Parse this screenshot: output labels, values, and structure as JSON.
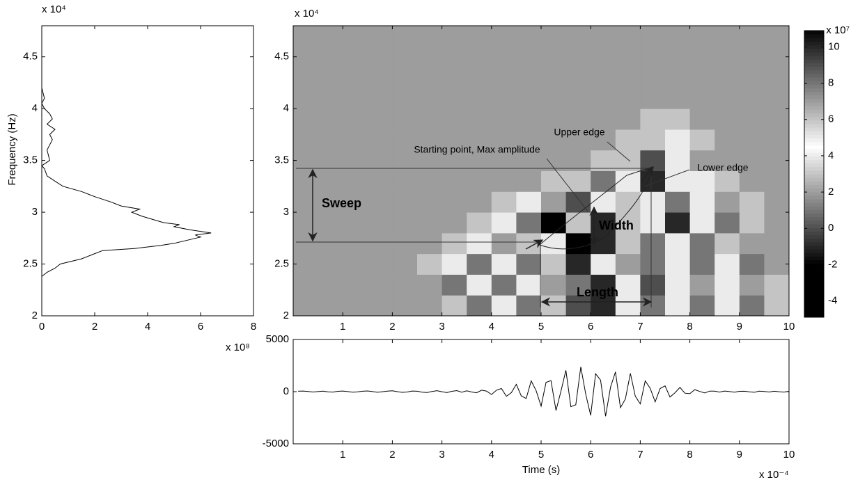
{
  "chart_data": [
    {
      "type": "line",
      "orientation": "horizontal",
      "ylabel": "Frequency (Hz)",
      "x_multiplier": "x 10⁸",
      "y_multiplier": "x 10⁴",
      "xlim": [
        0,
        8
      ],
      "xticks": [
        0,
        2,
        4,
        6,
        8
      ],
      "ylim": [
        2,
        4.8
      ],
      "yticks": [
        2,
        2.5,
        3,
        3.5,
        4,
        4.5
      ],
      "color": "#000000",
      "y": [
        2.38,
        2.42,
        2.46,
        2.5,
        2.55,
        2.6,
        2.63,
        2.65,
        2.68,
        2.7,
        2.73,
        2.76,
        2.78,
        2.8,
        2.83,
        2.86,
        2.88,
        2.9,
        2.93,
        2.96,
        3.0,
        3.03,
        3.06,
        3.1,
        3.15,
        3.2,
        3.25,
        3.3,
        3.35,
        3.42,
        3.45,
        3.5,
        3.6,
        3.7,
        3.75,
        3.8,
        3.85,
        3.9,
        3.95,
        4.0,
        4.05,
        4.1,
        4.2
      ],
      "values": [
        0,
        0.2,
        0.5,
        0.7,
        1.5,
        2.0,
        2.3,
        3.5,
        4.5,
        5.0,
        5.5,
        6.0,
        5.8,
        6.4,
        5.6,
        5.0,
        5.2,
        4.6,
        4.2,
        3.8,
        3.4,
        3.7,
        3.0,
        2.6,
        2.0,
        1.5,
        0.8,
        0.5,
        0.2,
        0.1,
        0,
        0.3,
        0.2,
        0.4,
        0.3,
        0.5,
        0.2,
        0.4,
        0.3,
        0.1,
        0,
        0.1,
        0
      ]
    },
    {
      "type": "heatmap",
      "y_multiplier": "x 10⁴",
      "xlim": [
        0,
        10
      ],
      "xticks": [
        1,
        2,
        3,
        4,
        5,
        6,
        7,
        8,
        9,
        10
      ],
      "ylim": [
        2,
        4.8
      ],
      "yticks": [
        2,
        2.5,
        3,
        3.5,
        4,
        4.5
      ],
      "z": [
        [
          2,
          2,
          2,
          2,
          2,
          2,
          3,
          1,
          4,
          1,
          6,
          0,
          10,
          4,
          1,
          5,
          1,
          4,
          1,
          3
        ],
        [
          2,
          2,
          2,
          2,
          2,
          2,
          1,
          4,
          1,
          5,
          7,
          1,
          10,
          5,
          0,
          5,
          2,
          4,
          2,
          3
        ],
        [
          2,
          2,
          2,
          2,
          2,
          3,
          4,
          1,
          5,
          1,
          6,
          -1,
          5,
          7,
          1,
          5,
          1,
          4,
          1,
          2
        ],
        [
          2,
          2,
          2,
          2,
          2,
          2,
          3,
          5,
          2,
          6,
          5,
          -2,
          -1,
          6,
          1,
          4,
          1,
          3,
          2,
          2
        ],
        [
          2,
          2,
          2,
          2,
          2,
          2,
          2,
          3,
          4,
          1,
          -2,
          6,
          10,
          6,
          4,
          -1,
          5,
          1,
          3,
          2
        ],
        [
          2,
          2,
          2,
          2,
          2,
          2,
          2,
          2,
          3,
          4,
          2,
          0,
          5,
          6,
          5,
          1,
          4,
          2,
          3,
          2
        ],
        [
          2,
          2,
          2,
          2,
          2,
          2,
          2,
          2,
          2,
          2,
          3,
          3,
          1,
          5,
          10,
          5,
          4,
          3,
          2,
          2
        ],
        [
          2,
          2,
          2,
          2,
          2,
          2,
          2,
          2,
          2,
          2,
          2,
          2,
          3,
          3,
          9,
          5,
          2,
          2,
          2,
          2
        ],
        [
          2,
          2,
          2,
          2,
          2,
          2,
          2,
          2,
          2,
          2,
          2,
          2,
          2,
          3,
          3,
          5,
          3,
          2,
          2,
          2
        ],
        [
          2,
          2,
          2,
          2,
          2,
          2,
          2,
          2,
          2,
          2,
          2,
          2,
          2,
          2,
          3,
          3,
          2,
          2,
          2,
          2
        ],
        [
          2,
          2,
          2,
          2,
          2,
          2,
          2,
          2,
          2,
          2,
          2,
          2,
          2,
          2,
          2,
          2,
          2,
          2,
          2,
          2
        ],
        [
          2,
          2,
          2,
          2,
          2,
          2,
          2,
          2,
          2,
          2,
          2,
          2,
          2,
          2,
          2,
          2,
          2,
          2,
          2,
          2
        ],
        [
          2,
          2,
          2,
          2,
          2,
          2,
          2,
          2,
          2,
          2,
          2,
          2,
          2,
          2,
          2,
          2,
          2,
          2,
          2,
          2
        ],
        [
          2,
          2,
          2,
          2,
          2,
          2,
          2,
          2,
          2,
          2,
          2,
          2,
          2,
          2,
          2,
          2,
          2,
          2,
          2,
          2
        ]
      ],
      "colorbar": {
        "multiplier": "x 10⁷",
        "lim": [
          -4.9,
          10.9
        ],
        "ticks": [
          -4,
          -2,
          0,
          2,
          4,
          6,
          8,
          10
        ]
      },
      "annotations": {
        "sweep": "Sweep",
        "width": "Width",
        "length": "Length",
        "upper_edge": "Upper edge",
        "start": "Starting point, Max amplitude",
        "lower_edge": "Lower edge"
      }
    },
    {
      "type": "line",
      "xlabel": "Time (s)",
      "x_multiplier": "x 10⁻⁴",
      "xlim": [
        0,
        10
      ],
      "xticks": [
        1,
        2,
        3,
        4,
        5,
        6,
        7,
        8,
        9,
        10
      ],
      "ylim": [
        -5000,
        5000
      ],
      "yticks": [
        -5000,
        0,
        5000
      ],
      "color": "#000000",
      "x": [
        0.1,
        0.2,
        0.3,
        0.4,
        0.5,
        0.6,
        0.7,
        0.8,
        0.9,
        1.0,
        1.1,
        1.2,
        1.3,
        1.4,
        1.5,
        1.6,
        1.7,
        1.8,
        1.9,
        2.0,
        2.1,
        2.2,
        2.3,
        2.4,
        2.5,
        2.6,
        2.7,
        2.8,
        2.9,
        3.0,
        3.1,
        3.2,
        3.3,
        3.4,
        3.5,
        3.6,
        3.7,
        3.8,
        3.9,
        4.0,
        4.1,
        4.2,
        4.3,
        4.4,
        4.5,
        4.6,
        4.7,
        4.8,
        4.9,
        5.0,
        5.1,
        5.2,
        5.3,
        5.4,
        5.5,
        5.6,
        5.7,
        5.8,
        5.9,
        6.0,
        6.1,
        6.2,
        6.3,
        6.4,
        6.5,
        6.6,
        6.7,
        6.8,
        6.9,
        7.0,
        7.1,
        7.2,
        7.3,
        7.4,
        7.5,
        7.6,
        7.7,
        7.8,
        7.9,
        8.0,
        8.1,
        8.2,
        8.3,
        8.4,
        8.5,
        8.6,
        8.7,
        8.8,
        8.9,
        9.0,
        9.1,
        9.2,
        9.3,
        9.4,
        9.5,
        9.6,
        9.7,
        9.8,
        9.9,
        10.0
      ],
      "values": [
        40,
        60,
        20,
        -30,
        10,
        50,
        -20,
        -40,
        30,
        60,
        10,
        -50,
        -20,
        40,
        70,
        10,
        -60,
        -10,
        50,
        80,
        0,
        -70,
        -30,
        60,
        40,
        -50,
        -80,
        20,
        90,
        -10,
        -90,
        30,
        100,
        -60,
        78,
        -34,
        -104,
        143,
        52,
        -271,
        137,
        301,
        -440,
        -96,
        702,
        -404,
        -655,
        1033,
        89,
        -1391,
        893,
        1051,
        -1809,
        41,
        2045,
        -1441,
        -1260,
        2372,
        -249,
        -2275,
        1715,
        1100,
        -2354,
        435,
        1893,
        -1535,
        -704,
        1752,
        -446,
        -1176,
        1034,
        326,
        -977,
        303,
        551,
        -519,
        -105,
        409,
        -147,
        -192,
        194,
        20,
        -129,
        53,
        50,
        -40,
        60,
        10,
        -50,
        30,
        40,
        -20,
        -60,
        50,
        20,
        -30,
        40,
        -10,
        -40,
        30
      ]
    }
  ]
}
